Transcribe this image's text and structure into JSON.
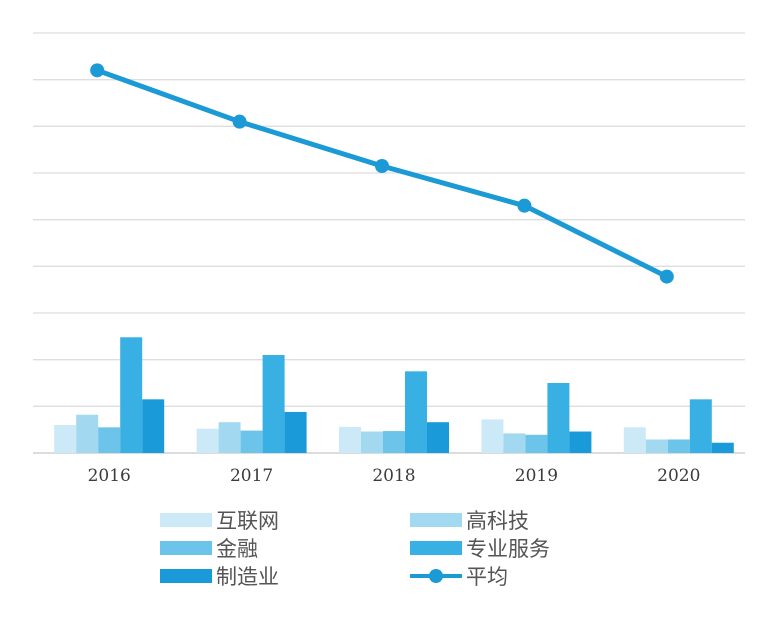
{
  "chart_data": {
    "type": "bar+line",
    "categories": [
      "2016",
      "2017",
      "2018",
      "2019",
      "2020"
    ],
    "ylim": [
      0,
      9
    ],
    "gridlines": 9,
    "grid": true,
    "legend_position": "bottom",
    "series": [
      {
        "name": "互联网",
        "type": "bar",
        "color": "#cce9f8",
        "values": [
          0.6,
          0.52,
          0.56,
          0.72,
          0.55
        ]
      },
      {
        "name": "高科技",
        "type": "bar",
        "color": "#a2d9f1",
        "values": [
          0.82,
          0.66,
          0.46,
          0.42,
          0.29
        ]
      },
      {
        "name": "金融",
        "type": "bar",
        "color": "#6cc4ea",
        "values": [
          0.55,
          0.48,
          0.47,
          0.39,
          0.29
        ]
      },
      {
        "name": "专业服务",
        "type": "bar",
        "color": "#38b0e3",
        "values": [
          2.48,
          2.1,
          1.75,
          1.5,
          1.15
        ]
      },
      {
        "name": "制造业",
        "type": "bar",
        "color": "#1a9ad9",
        "values": [
          1.15,
          0.88,
          0.66,
          0.46,
          0.22
        ]
      },
      {
        "name": "平均",
        "type": "line",
        "color": "#1b9ad6",
        "values": [
          8.2,
          7.1,
          6.15,
          5.3,
          3.78
        ]
      }
    ]
  },
  "legend": {
    "items": [
      {
        "label": "互联网",
        "kind": "bar",
        "color": "#cce9f8"
      },
      {
        "label": "高科技",
        "kind": "bar",
        "color": "#a2d9f1"
      },
      {
        "label": "金融",
        "kind": "bar",
        "color": "#6cc4ea"
      },
      {
        "label": "专业服务",
        "kind": "bar",
        "color": "#38b0e3"
      },
      {
        "label": "制造业",
        "kind": "bar",
        "color": "#1a9ad9"
      },
      {
        "label": "平均",
        "kind": "line",
        "color": "#1b9ad6"
      }
    ]
  }
}
